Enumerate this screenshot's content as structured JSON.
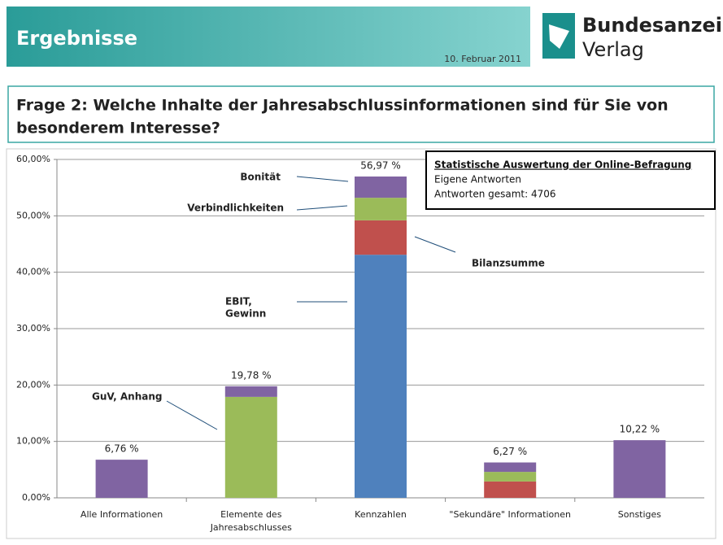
{
  "header": {
    "title": "Ergebnisse",
    "date": "10. Februar 2011",
    "logo": [
      "Bundesanzeiger",
      "Verlag"
    ]
  },
  "question": [
    "Frage 2: Welche Inhalte der Jahresabschlussinformationen sind für Sie von",
    "besonderem Interesse?"
  ],
  "chart_data": {
    "type": "stacked_bar",
    "categories": [
      [
        "Alle Informationen"
      ],
      [
        "Elemente des",
        "Jahresabschlusses"
      ],
      [
        "Kennzahlen"
      ],
      [
        "\"Sekundäre\" Informationen"
      ],
      [
        "Sonstiges"
      ]
    ],
    "series": [
      {
        "color": "#4f81bd",
        "values": [
          0,
          0,
          43.1,
          0,
          0
        ]
      },
      {
        "color": "#c0504d",
        "values": [
          0,
          0,
          6.1,
          2.9,
          0
        ]
      },
      {
        "color": "#9bbb59",
        "values": [
          0,
          17.9,
          4.0,
          1.7,
          0
        ]
      },
      {
        "color": "#8064a2",
        "values": [
          6.76,
          1.88,
          3.77,
          1.67,
          10.22
        ]
      }
    ],
    "totals": [
      6.76,
      19.78,
      56.97,
      6.27,
      10.22
    ],
    "total_labels": [
      "6,76 %",
      "19,78 %",
      "56,97 %",
      "6,27 %",
      "10,22 %"
    ],
    "ylim": [
      0,
      60
    ],
    "yticks": [
      {
        "value": 0,
        "label": "0,00%"
      },
      {
        "value": 10,
        "label": "10,00%"
      },
      {
        "value": 20,
        "label": "20,00%"
      },
      {
        "value": 30,
        "label": "30,00%"
      },
      {
        "value": 40,
        "label": "40,00%"
      },
      {
        "value": 50,
        "label": "50,00%"
      },
      {
        "value": 60,
        "label": "60,00%"
      }
    ],
    "grid": true,
    "annotations": [
      [
        "Bonität"
      ],
      [
        "Verbindlichkeiten"
      ],
      [
        "Bilanzsumme"
      ],
      [
        "EBIT,",
        "Gewinn"
      ],
      [
        "GuV, Anhang"
      ]
    ],
    "info_box": [
      "Statistische Auswertung der Online-Befragung",
      "Eigene Antworten",
      "Antworten gesamt: 4706"
    ]
  }
}
